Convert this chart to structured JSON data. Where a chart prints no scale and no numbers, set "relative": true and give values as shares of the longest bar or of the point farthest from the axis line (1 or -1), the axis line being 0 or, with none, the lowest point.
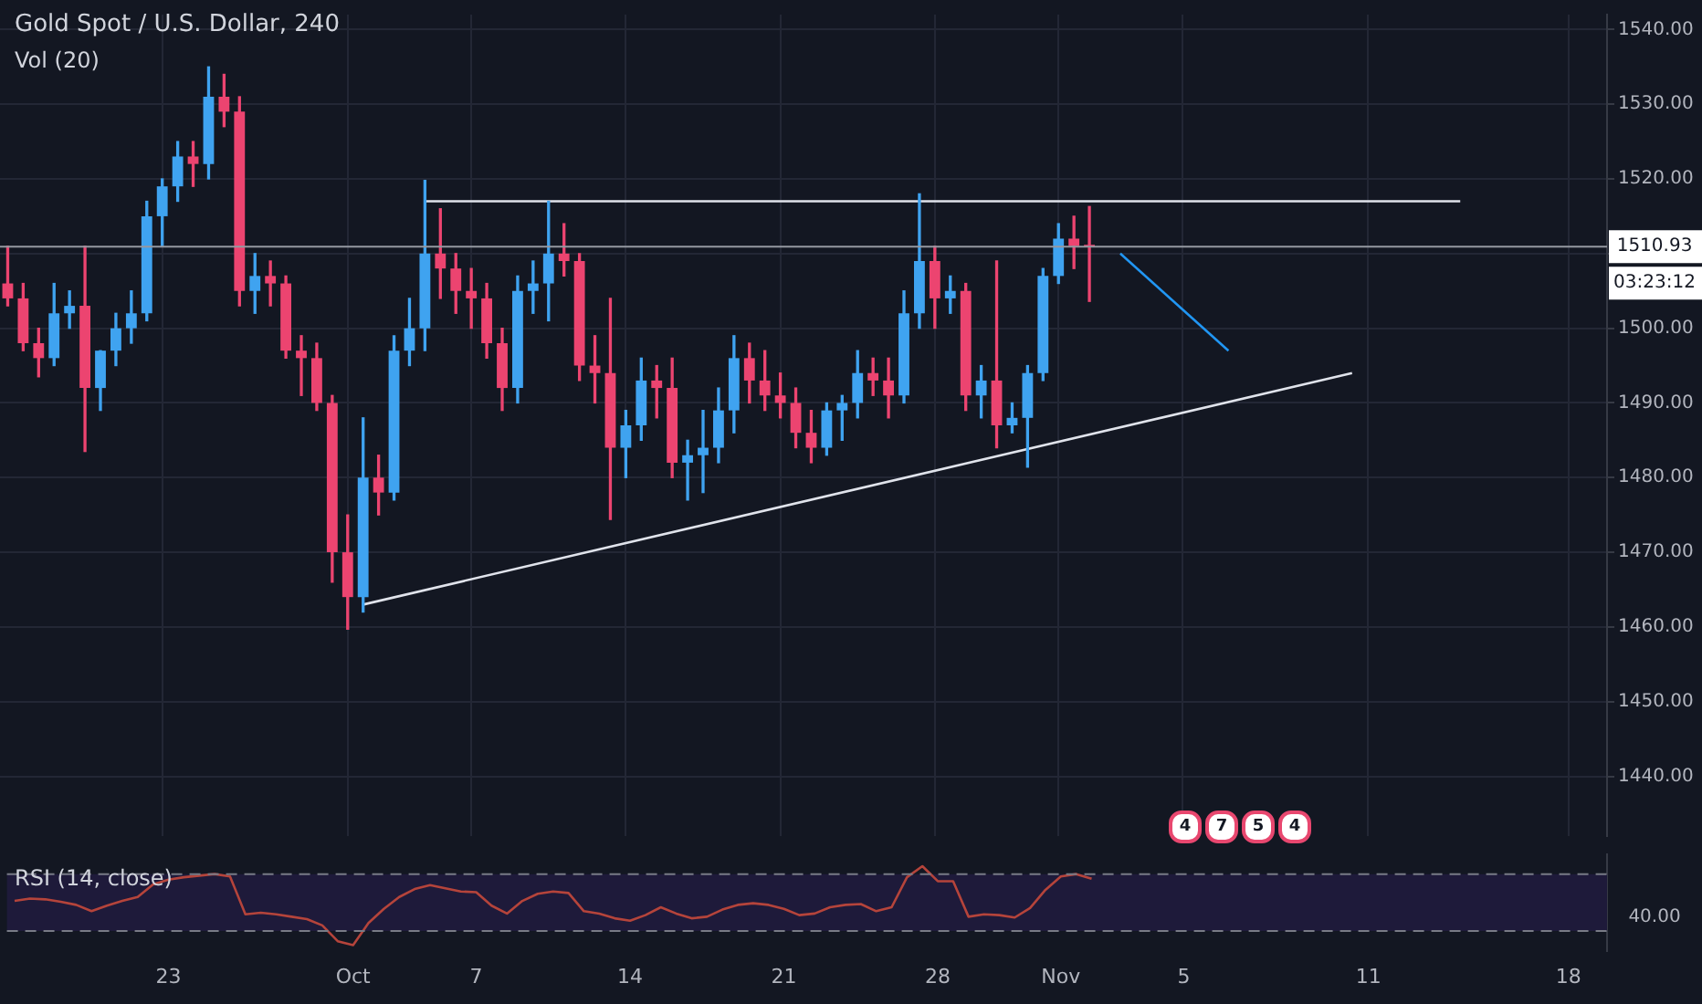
{
  "chart_data": [
    {
      "type": "candlestick",
      "title": "Gold Spot / U.S. Dollar, 240",
      "subtitle": "Vol (20)",
      "categories": [
        null,
        null,
        null,
        null,
        null,
        null,
        null,
        null,
        null,
        null,
        null,
        null,
        null,
        null,
        null,
        null,
        null,
        null,
        null,
        null,
        null,
        null,
        null,
        null,
        null,
        null,
        null,
        null,
        null,
        null,
        null,
        null,
        null,
        null,
        null,
        null,
        null,
        null,
        null,
        null,
        null,
        null,
        null,
        null,
        null,
        null,
        null,
        null,
        null,
        null,
        null,
        null,
        null,
        null,
        null,
        null,
        null,
        null,
        null,
        null,
        null,
        null,
        null,
        null,
        null,
        null,
        null,
        null,
        null,
        null,
        null,
        null,
        null,
        null,
        null,
        null,
        null,
        null,
        null,
        null,
        null,
        null,
        null,
        null,
        null,
        null,
        null,
        null,
        null,
        null,
        null,
        null,
        null,
        null,
        null,
        null,
        null,
        null,
        null,
        null,
        null,
        null,
        null,
        null
      ],
      "ohlc": [
        [
          1506,
          1511,
          1503,
          1504
        ],
        [
          1504,
          1506,
          1497,
          1498
        ],
        [
          1498,
          1500,
          1493.5,
          1496
        ],
        [
          1496,
          1506,
          1495,
          1502
        ],
        [
          1502,
          1505,
          1500,
          1503
        ],
        [
          1503,
          1511,
          1483.5,
          1492
        ],
        [
          1492,
          1497,
          1489,
          1497
        ],
        [
          1497,
          1502,
          1495,
          1500
        ],
        [
          1500,
          1505,
          1498,
          1502
        ],
        [
          1502,
          1517,
          1501,
          1515
        ],
        [
          1515,
          1520,
          1511,
          1519
        ],
        [
          1519,
          1525,
          1517,
          1523
        ],
        [
          1523,
          1525,
          1519,
          1522
        ],
        [
          1522,
          1535,
          1520,
          1531
        ],
        [
          1531,
          1534,
          1527,
          1529
        ],
        [
          1529,
          1531,
          1503,
          1505
        ],
        [
          1505,
          1510,
          1502,
          1507
        ],
        [
          1507,
          1509,
          1503,
          1506
        ],
        [
          1506,
          1507,
          1496,
          1497
        ],
        [
          1497,
          1499,
          1491,
          1496
        ],
        [
          1496,
          1498,
          1489,
          1490
        ],
        [
          1490,
          1491,
          1466,
          1470
        ],
        [
          1470,
          1475,
          1459.7,
          1464
        ],
        [
          1464,
          1488,
          1462,
          1480
        ],
        [
          1480,
          1483,
          1475,
          1478
        ],
        [
          1478,
          1499,
          1477,
          1497
        ],
        [
          1497,
          1504,
          1495,
          1500
        ],
        [
          1500,
          1519.8,
          1497,
          1510
        ],
        [
          1510,
          1516,
          1504,
          1508
        ],
        [
          1508,
          1510,
          1502,
          1505
        ],
        [
          1505,
          1508,
          1500,
          1504
        ],
        [
          1504,
          1506,
          1496,
          1498
        ],
        [
          1498,
          1500,
          1489,
          1492
        ],
        [
          1492,
          1507,
          1490,
          1505
        ],
        [
          1505,
          1509,
          1502,
          1506
        ],
        [
          1506,
          1517,
          1501,
          1510
        ],
        [
          1510,
          1514,
          1507,
          1509
        ],
        [
          1509,
          1510,
          1493,
          1495
        ],
        [
          1495,
          1499,
          1490,
          1494
        ],
        [
          1494,
          1504,
          1474.4,
          1484
        ],
        [
          1484,
          1489,
          1480,
          1487
        ],
        [
          1487,
          1496,
          1485,
          1493
        ],
        [
          1493,
          1495,
          1488,
          1492
        ],
        [
          1492,
          1496,
          1480,
          1482
        ],
        [
          1482,
          1485,
          1477,
          1483
        ],
        [
          1483,
          1489,
          1478,
          1484
        ],
        [
          1484,
          1492,
          1482,
          1489
        ],
        [
          1489,
          1499,
          1486,
          1496
        ],
        [
          1496,
          1498,
          1490,
          1493
        ],
        [
          1493,
          1497,
          1489,
          1491
        ],
        [
          1491,
          1494,
          1488,
          1490
        ],
        [
          1490,
          1492,
          1484,
          1486
        ],
        [
          1486,
          1489,
          1482,
          1484
        ],
        [
          1484,
          1490,
          1483,
          1489
        ],
        [
          1489,
          1491,
          1485,
          1490
        ],
        [
          1490,
          1497,
          1488,
          1494
        ],
        [
          1494,
          1496,
          1491,
          1493
        ],
        [
          1493,
          1496,
          1488,
          1491
        ],
        [
          1491,
          1505,
          1490,
          1502
        ],
        [
          1502,
          1518,
          1500,
          1509
        ],
        [
          1509,
          1511,
          1500,
          1504
        ],
        [
          1504,
          1507,
          1502,
          1505
        ],
        [
          1505,
          1506,
          1489,
          1491
        ],
        [
          1491,
          1495,
          1488,
          1493
        ],
        [
          1493,
          1509,
          1484,
          1487
        ],
        [
          1487,
          1490,
          1486,
          1488
        ],
        [
          1488,
          1495,
          1481.4,
          1494
        ],
        [
          1494,
          1508,
          1493,
          1507
        ],
        [
          1507,
          1514,
          1506,
          1512
        ],
        [
          1512,
          1515,
          1508,
          1511
        ],
        [
          1511,
          1516.3,
          1503.6,
          1510.93
        ],
        null,
        null,
        null,
        null,
        null,
        null,
        null,
        null,
        null,
        null,
        null,
        null,
        null,
        null,
        null,
        null,
        null,
        null,
        null,
        null,
        null,
        null,
        null,
        null,
        null,
        null,
        null,
        null,
        null,
        null,
        null,
        null,
        null
      ],
      "colors": [
        "#ec4470",
        "#ec4470",
        "#ec4470",
        "#3fa3f0",
        "#3fa3f0",
        "#ec4470",
        "#3fa3f0",
        "#3fa3f0",
        "#3fa3f0",
        "#3fa3f0",
        "#3fa3f0",
        "#3fa3f0",
        "#ec4470",
        "#3fa3f0",
        "#ec4470",
        "#ec4470",
        "#3fa3f0",
        "#ec4470",
        "#ec4470",
        "#ec4470",
        "#ec4470",
        "#ec4470",
        "#ec4470",
        "#3fa3f0",
        "#ec4470",
        "#3fa3f0",
        "#3fa3f0",
        "#3fa3f0",
        "#ec4470",
        "#ec4470",
        "#ec4470",
        "#ec4470",
        "#ec4470",
        "#3fa3f0",
        "#3fa3f0",
        "#3fa3f0",
        "#ec4470",
        "#ec4470",
        "#ec4470",
        "#ec4470",
        "#3fa3f0",
        "#3fa3f0",
        "#ec4470",
        "#ec4470",
        "#3fa3f0",
        "#3fa3f0",
        "#3fa3f0",
        "#3fa3f0",
        "#ec4470",
        "#ec4470",
        "#ec4470",
        "#ec4470",
        "#ec4470",
        "#3fa3f0",
        "#3fa3f0",
        "#3fa3f0",
        "#ec4470",
        "#ec4470",
        "#3fa3f0",
        "#3fa3f0",
        "#ec4470",
        "#3fa3f0",
        "#ec4470",
        "#3fa3f0",
        "#ec4470",
        "#3fa3f0",
        "#3fa3f0",
        "#3fa3f0",
        "#3fa3f0",
        "#ec4470",
        "#ec4470",
        null,
        null,
        null,
        null,
        null,
        null,
        null,
        null,
        null,
        null,
        null,
        null,
        null,
        null,
        null,
        null,
        null,
        null,
        null,
        null,
        null,
        null,
        null,
        null,
        null,
        null,
        null,
        null,
        null,
        null,
        null,
        null,
        null
      ],
      "series": [
        {
          "type": "line",
          "color": "#e0e3eb",
          "values": [
            null,
            null,
            null,
            null,
            null,
            null,
            null,
            null,
            null,
            null,
            null,
            null,
            null,
            null,
            null,
            null,
            null,
            null,
            null,
            null,
            null,
            null,
            null,
            null,
            null,
            null,
            null,
            1517,
            null,
            null,
            null,
            null,
            null,
            null,
            null,
            null,
            null,
            null,
            null,
            null,
            null,
            null,
            null,
            null,
            null,
            null,
            null,
            null,
            null,
            null,
            null,
            null,
            null,
            null,
            null,
            null,
            null,
            null,
            null,
            null,
            null,
            null,
            null,
            null,
            null,
            null,
            null,
            null,
            null,
            null,
            null,
            null,
            null,
            null,
            null,
            null,
            null,
            null,
            null,
            null,
            null,
            null,
            null,
            null,
            null,
            null,
            null,
            null,
            null,
            null,
            null,
            null,
            null,
            null,
            1517,
            null,
            null,
            null,
            null,
            null,
            null,
            null,
            null,
            null
          ]
        },
        {
          "type": "line",
          "color": "#e0e3eb",
          "values": [
            null,
            null,
            null,
            null,
            null,
            null,
            null,
            null,
            null,
            null,
            null,
            null,
            null,
            null,
            null,
            null,
            null,
            null,
            null,
            null,
            null,
            null,
            null,
            1463,
            null,
            null,
            null,
            null,
            null,
            null,
            null,
            null,
            null,
            null,
            null,
            null,
            null,
            null,
            null,
            null,
            null,
            null,
            null,
            null,
            null,
            null,
            null,
            null,
            null,
            null,
            null,
            null,
            null,
            null,
            null,
            null,
            null,
            null,
            null,
            null,
            null,
            null,
            null,
            null,
            null,
            null,
            null,
            null,
            null,
            null,
            null,
            null,
            null,
            null,
            null,
            null,
            null,
            null,
            null,
            null,
            null,
            null,
            null,
            null,
            null,
            null,
            null,
            1494,
            null,
            null,
            null,
            null,
            null,
            null,
            null,
            null,
            null,
            null,
            null,
            null,
            null,
            null,
            null,
            null
          ]
        },
        {
          "type": "line",
          "color": "#2196f3",
          "values": [
            null,
            null,
            null,
            null,
            null,
            null,
            null,
            null,
            null,
            null,
            null,
            null,
            null,
            null,
            null,
            null,
            null,
            null,
            null,
            null,
            null,
            null,
            null,
            null,
            null,
            null,
            null,
            null,
            null,
            null,
            null,
            null,
            null,
            null,
            null,
            null,
            null,
            null,
            null,
            null,
            null,
            null,
            null,
            null,
            null,
            null,
            null,
            null,
            null,
            null,
            null,
            null,
            null,
            null,
            null,
            null,
            null,
            null,
            null,
            null,
            null,
            null,
            null,
            null,
            null,
            null,
            null,
            null,
            null,
            null,
            null,
            null,
            1510,
            null,
            null,
            null,
            null,
            null,
            null,
            1497,
            null,
            null,
            null,
            null,
            null,
            null,
            null,
            null,
            null,
            null,
            null,
            null,
            null,
            null,
            null,
            null,
            null,
            null,
            null,
            null,
            null,
            null,
            null,
            null
          ]
        }
      ],
      "ylim": [
        1432,
        1542
      ],
      "yticks": [
        {
          "value": 1440,
          "label": "1440.00"
        },
        {
          "value": 1450,
          "label": "1450.00"
        },
        {
          "value": 1460,
          "label": "1460.00"
        },
        {
          "value": 1470,
          "label": "1470.00"
        },
        {
          "value": 1480,
          "label": "1480.00"
        },
        {
          "value": 1490,
          "label": "1490.00"
        },
        {
          "value": 1500,
          "label": "1500.00"
        },
        {
          "value": 1510,
          "label": null
        },
        {
          "value": 1520,
          "label": "1520.00"
        },
        {
          "value": 1530,
          "label": "1530.00"
        },
        {
          "value": 1540,
          "label": "1540.00"
        }
      ],
      "ref_lines": [
        {
          "axis": "y",
          "value": 1510.93,
          "label": "1510.93",
          "color": "#9598a1"
        }
      ],
      "annotations": [
        "03:23:12",
        "4",
        "7",
        "5",
        "4"
      ],
      "grid": true,
      "tick_labels": "y"
    },
    {
      "type": "line",
      "title": "RSI (14, close)",
      "relative": true,
      "categories": [
        null,
        null,
        null,
        null,
        null,
        null,
        null,
        null,
        null,
        null,
        "23",
        null,
        null,
        null,
        null,
        null,
        null,
        null,
        null,
        null,
        null,
        null,
        "Oct",
        null,
        null,
        null,
        null,
        null,
        null,
        null,
        "7",
        null,
        null,
        null,
        null,
        null,
        null,
        null,
        null,
        null,
        "14",
        null,
        null,
        null,
        null,
        null,
        null,
        null,
        null,
        null,
        "21",
        null,
        null,
        null,
        null,
        null,
        null,
        null,
        null,
        null,
        "28",
        null,
        null,
        null,
        null,
        null,
        null,
        null,
        "Nov",
        null,
        null,
        null,
        null,
        null,
        null,
        null,
        "5",
        null,
        null,
        null,
        null,
        null,
        null,
        null,
        null,
        null,
        null,
        null,
        "11",
        null,
        null,
        null,
        null,
        null,
        null,
        null,
        null,
        null,
        null,
        null,
        null,
        "18",
        null,
        null
      ],
      "series": [
        {
          "color": "#b5443b",
          "values": [
            0.56,
            0.59,
            0.58,
            0.55,
            0.51,
            0.43,
            0.5,
            0.56,
            0.61,
            0.77,
            0.83,
            0.86,
            0.88,
            0.9,
            0.87,
            0.39,
            0.41,
            0.39,
            0.36,
            0.33,
            0.25,
            0.05,
            0,
            0.28,
            0.46,
            0.61,
            0.71,
            0.76,
            0.72,
            0.68,
            0.67,
            0.5,
            0.4,
            0.56,
            0.65,
            0.68,
            0.66,
            0.43,
            0.4,
            0.34,
            0.31,
            0.38,
            0.48,
            0.4,
            0.34,
            0.36,
            0.45,
            0.51,
            0.53,
            0.51,
            0.46,
            0.38,
            0.4,
            0.48,
            0.51,
            0.52,
            0.43,
            0.48,
            0.86,
            1,
            0.81,
            0.81,
            0.36,
            0.39,
            0.38,
            0.35,
            0.47,
            0.7,
            0.87,
            0.9,
            0.84,
            null,
            null,
            null,
            null,
            null,
            null,
            null,
            null,
            null,
            null,
            null,
            null,
            null,
            null,
            null,
            null,
            null,
            null,
            null,
            null,
            null,
            null,
            null,
            null,
            null,
            null,
            null,
            null,
            null,
            null,
            null,
            null,
            null
          ]
        }
      ],
      "bands": [
        {
          "axis": "y",
          "from": 0.18,
          "to": 0.9,
          "color": "#1e1a3a"
        }
      ],
      "ref_lines": [
        {
          "axis": "y",
          "value": 0.9,
          "color": "#787b86",
          "line_style": "dashed"
        },
        {
          "axis": "y",
          "value": 0.18,
          "color": "#787b86",
          "line_style": "dashed"
        }
      ],
      "annotations": [
        "40.00"
      ],
      "tick_labels": "x"
    }
  ]
}
